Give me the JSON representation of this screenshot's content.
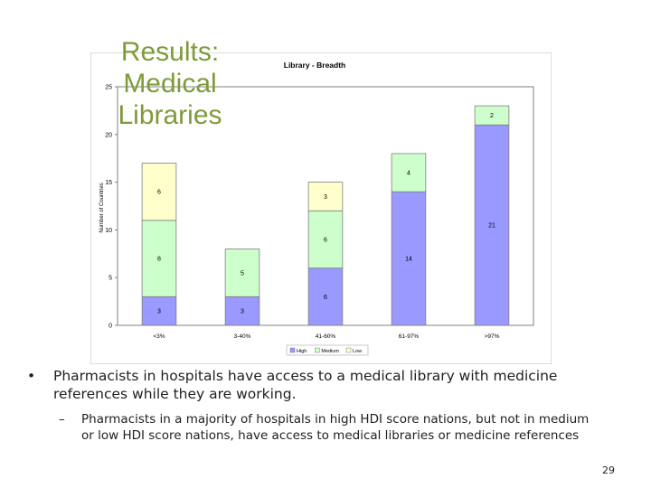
{
  "slide": {
    "title_lines": [
      "Results:",
      "Medical",
      "Libraries"
    ],
    "bullets": [
      {
        "marker": "•",
        "text": "Pharmacists in hospitals have access to a medical library with medicine references while they are working.",
        "sub": [
          {
            "marker": "–",
            "text": "Pharmacists in a majority of hospitals in high HDI score nations, but not in medium or low HDI score nations, have access to medical libraries or medicine references"
          }
        ]
      }
    ],
    "page_number": "29"
  },
  "chart_data": {
    "type": "bar",
    "stacked": true,
    "title": "Library - Breadth",
    "xlabel": "",
    "ylabel": "Number of Countries",
    "ylim": [
      0,
      25
    ],
    "yticks": [
      0,
      5,
      10,
      15,
      20,
      25
    ],
    "categories": [
      "<3%",
      "3-40%",
      "41-60%",
      "61-97%",
      ">97%"
    ],
    "series": [
      {
        "name": "High",
        "color": "#9999ff",
        "values": [
          3,
          3,
          6,
          14,
          21
        ]
      },
      {
        "name": "Medium",
        "color": "#ccffcc",
        "values": [
          8,
          5,
          6,
          4,
          2
        ]
      },
      {
        "name": "Low",
        "color": "#ffffcc",
        "values": [
          6,
          0,
          3,
          0,
          0
        ]
      }
    ],
    "grid": false,
    "legend_position": "bottom"
  }
}
